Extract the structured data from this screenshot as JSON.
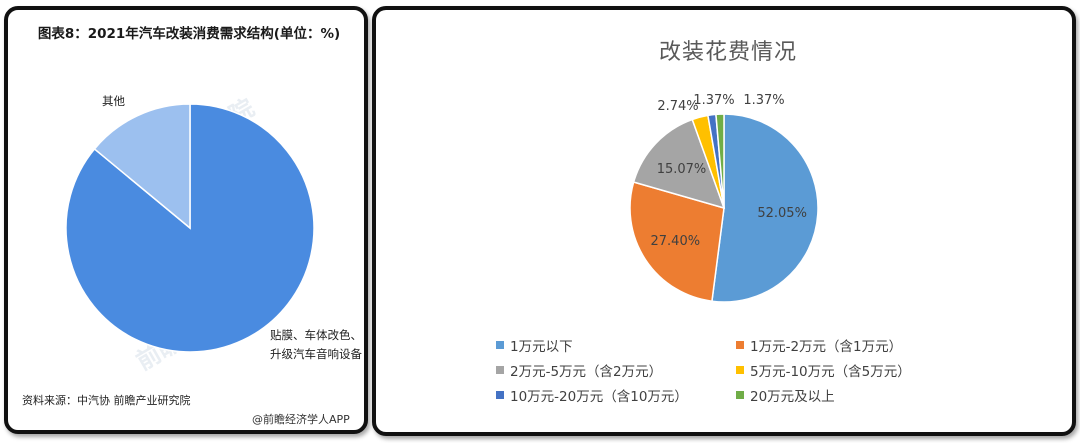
{
  "left": {
    "title": "图表8：2021年汽车改装消费需求结构(单位：%)",
    "labels": {
      "other": "其他",
      "main": "贴膜、车体改色、升级汽车音响设备"
    },
    "source": "资料来源：中汽协 前瞻产业研究院",
    "brand": "@前瞻经济学人APP",
    "watermark": "前瞻产业研究院",
    "chart_data": {
      "type": "pie",
      "title": "图表8：2021年汽车改装消费需求结构(单位：%)",
      "slices": [
        {
          "label": "贴膜、车体改色、升级汽车音响设备",
          "value": 86,
          "color": "#4a8be0"
        },
        {
          "label": "其他",
          "value": 14,
          "color": "#9cc0ef"
        }
      ]
    }
  },
  "right": {
    "chart_data": {
      "type": "pie",
      "title": "改装花费情况",
      "slices": [
        {
          "label": "1万元以下",
          "value": 52.05,
          "display": "52.05%",
          "color": "#5b9bd5"
        },
        {
          "label": "1万元-2万元（含1万元）",
          "value": 27.4,
          "display": "27.40%",
          "color": "#ed7d31"
        },
        {
          "label": "2万元-5万元（含2万元）",
          "value": 15.07,
          "display": "15.07%",
          "color": "#a5a5a5"
        },
        {
          "label": "5万元-10万元（含5万元）",
          "value": 2.74,
          "display": "2.74%",
          "color": "#ffc000"
        },
        {
          "label": "10万元-20万元（含10万元）",
          "value": 1.37,
          "display": "1.37%",
          "color": "#4472c4"
        },
        {
          "label": "20万元及以上",
          "value": 1.37,
          "display": "1.37%",
          "color": "#70ad47"
        }
      ],
      "legend_position": "bottom"
    }
  }
}
